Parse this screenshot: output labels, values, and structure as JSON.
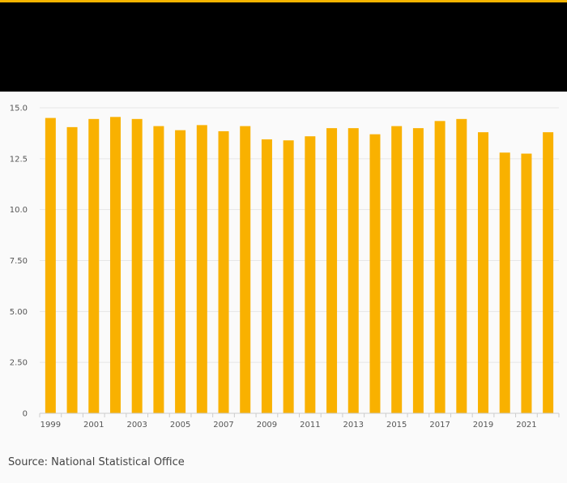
{
  "colors": {
    "accent": "#f5b400",
    "header": "#000000",
    "bar": "#f9b100"
  },
  "source": "Source: National Statistical Office",
  "chart_data": {
    "type": "bar",
    "title": "",
    "xlabel": "",
    "ylabel": "",
    "ylim": [
      0,
      15
    ],
    "yticks": [
      0,
      2.5,
      5,
      7.5,
      10,
      12.5,
      15
    ],
    "ytick_labels": [
      "0",
      "2.50",
      "5.00",
      "7.50",
      "10.0",
      "12.5",
      "15.0"
    ],
    "grid": true,
    "categories": [
      1999,
      2000,
      2001,
      2002,
      2003,
      2004,
      2005,
      2006,
      2007,
      2008,
      2009,
      2010,
      2011,
      2012,
      2013,
      2014,
      2015,
      2016,
      2017,
      2018,
      2019,
      2020,
      2021,
      2022
    ],
    "xtick_labels": [
      "1999",
      "2001",
      "2003",
      "2005",
      "2007",
      "2009",
      "2011",
      "2013",
      "2015",
      "2017",
      "2019",
      "2021"
    ],
    "values": [
      14.5,
      14.05,
      14.45,
      14.55,
      14.45,
      14.1,
      13.9,
      14.15,
      13.85,
      14.1,
      13.45,
      13.4,
      13.6,
      14.0,
      14.0,
      13.7,
      14.1,
      14.0,
      14.35,
      14.45,
      13.8,
      12.8,
      12.75,
      13.8
    ]
  }
}
